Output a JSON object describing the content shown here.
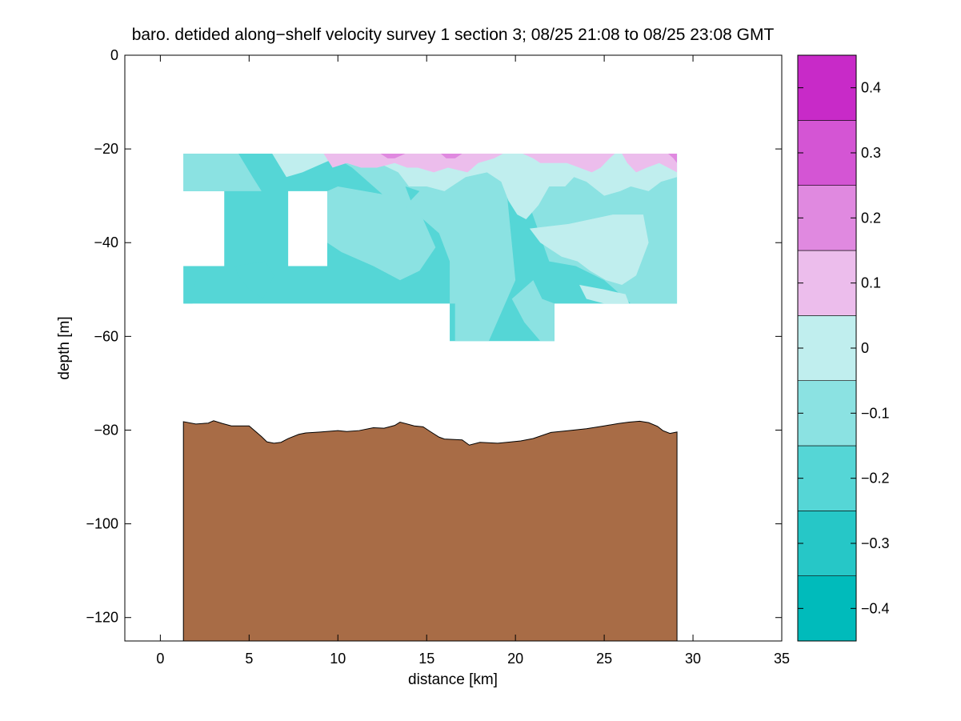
{
  "chart_data": {
    "type": "contour",
    "title": "baro. detided along−shelf velocity survey 1 section 3; 08/25 21:08 to 08/25 23:08 GMT",
    "xlabel": "distance [km]",
    "ylabel": "depth [m]",
    "xlim": [
      -2,
      35
    ],
    "ylim": [
      -125,
      0
    ],
    "xticks": [
      0,
      5,
      10,
      15,
      20,
      25,
      30,
      35
    ],
    "xtick_labels": [
      "0",
      "5",
      "10",
      "15",
      "20",
      "25",
      "30",
      "35"
    ],
    "yticks": [
      0,
      -20,
      -40,
      -60,
      -80,
      -100,
      -120
    ],
    "ytick_labels": [
      "0",
      "−20",
      "−40",
      "−60",
      "−80",
      "−100",
      "−120"
    ],
    "colorbar": {
      "levels": [
        -0.45,
        -0.35,
        -0.25,
        -0.15,
        -0.05,
        0.05,
        0.15,
        0.25,
        0.35,
        0.45
      ],
      "colors": [
        "#00bbbb",
        "#26c7c7",
        "#55d6d6",
        "#8be2e2",
        "#c0eeee",
        "#ecbdec",
        "#e089e0",
        "#d455d4",
        "#c82ac8",
        "#bb00bb"
      ],
      "ticks": [
        -0.4,
        -0.3,
        -0.2,
        -0.1,
        0,
        0.1,
        0.2,
        0.3,
        0.4
      ],
      "tick_labels": [
        "−0.4",
        "−0.3",
        "−0.2",
        "−0.1",
        "0",
        "0.1",
        "0.2",
        "0.3",
        "0.4"
      ]
    },
    "data_region": {
      "main": {
        "x": [
          1.3,
          29.1
        ],
        "depth": [
          -21,
          -53
        ]
      },
      "extension": {
        "x": [
          16.3,
          22.2
        ],
        "depth": [
          -53,
          -61
        ]
      },
      "gaps": [
        {
          "x": [
            1.3,
            3.6
          ],
          "depth": [
            -29,
            -45
          ]
        },
        {
          "x": [
            7.2,
            9.4
          ],
          "depth": [
            -29,
            -45
          ]
        }
      ],
      "background_level": -0.2
    },
    "velocity_regions": [
      {
        "value": -0.15,
        "x": [
          9.5,
          10.3,
          12,
          13,
          14.2,
          14.5,
          17.5,
          19.3,
          20,
          18.5,
          16.6,
          16.6,
          16.3,
          16.3,
          15.7,
          14.8,
          12.6,
          10.8
        ],
        "y": [
          -21,
          -21,
          -21,
          -21,
          -21,
          -21,
          -21,
          -21,
          -48,
          -61,
          -61,
          -53,
          -53,
          -44,
          -38,
          -35,
          -30,
          -24
        ]
      },
      {
        "value": -0.15,
        "x": [
          1.3,
          4.4,
          5.2,
          5.7,
          3.6,
          1.3
        ],
        "y": [
          -21,
          -21,
          -26,
          -29,
          -29,
          -29
        ]
      },
      {
        "value": -0.15,
        "x": [
          9.4,
          10,
          13,
          14.8,
          15.5,
          14.6,
          13.5,
          12,
          10.2,
          9.4
        ],
        "y": [
          -29,
          -28,
          -30,
          -35,
          -41,
          -46,
          -48,
          -45,
          -42,
          -40
        ]
      },
      {
        "value": -0.15,
        "x": [
          18,
          21,
          25,
          29.1,
          29.1,
          26.5,
          25,
          23.4,
          21.9,
          20.6
        ],
        "y": [
          -21,
          -21,
          -21,
          -21,
          -53,
          -53,
          -48,
          -45,
          -44,
          -30
        ]
      },
      {
        "value": -0.15,
        "x": [
          19.8,
          21,
          21.5,
          22.2,
          22.2,
          21.4,
          20.5
        ],
        "y": [
          -52,
          -48,
          -52,
          -53,
          -61,
          -61,
          -57
        ]
      },
      {
        "value": -0.05,
        "x": [
          6.3,
          8,
          9.2,
          10.3,
          12,
          13.5,
          15.5,
          17.3,
          19.8,
          22,
          24,
          26.6,
          28.8,
          29.1,
          29.1,
          28.2,
          27.5,
          26.5,
          25.9,
          25,
          24,
          23.3,
          22.8,
          21.9,
          21.3,
          20.6,
          20.1,
          19.6,
          19.2,
          18.4,
          17.2,
          16,
          15,
          14,
          13.4,
          12.3,
          10.8,
          9.8,
          8,
          7.1
        ],
        "y": [
          -21,
          -21,
          -21,
          -21,
          -21,
          -21,
          -21,
          -21,
          -21,
          -21,
          -21,
          -21,
          -21,
          -21,
          -26,
          -27,
          -29,
          -28,
          -29,
          -30,
          -27,
          -26,
          -28,
          -28,
          -32,
          -35,
          -34,
          -31,
          -27,
          -25,
          -26,
          -29,
          -28,
          -28,
          -25,
          -23,
          -22,
          -22,
          -25,
          -26
        ]
      },
      {
        "value": -0.05,
        "x": [
          20.8,
          23,
          25.5,
          27.2,
          27.5,
          26.8,
          26,
          25.1,
          24.2,
          23.5,
          22.6,
          21.4
        ],
        "y": [
          -37,
          -36,
          -34,
          -34,
          -40,
          -47,
          -49,
          -48,
          -46,
          -44,
          -43,
          -40
        ]
      },
      {
        "value": -0.05,
        "x": [
          23.6,
          25,
          26.2,
          26.4,
          25,
          24
        ],
        "y": [
          -49,
          -50,
          -51,
          -53,
          -53,
          -52
        ]
      },
      {
        "value": 0.05,
        "x": [
          8.7,
          10.1,
          12,
          14,
          15.5,
          16.5,
          17.5,
          18.2,
          19,
          19.1,
          17.2,
          16.5,
          15.5,
          14.2,
          13.4,
          12.6,
          11.9,
          11.2,
          10.4,
          9.6
        ],
        "y": [
          -21,
          -21,
          -21,
          -21,
          -21,
          -21,
          -21,
          -21,
          -21,
          -21,
          -21,
          -21,
          -21,
          -21,
          -21,
          -21,
          -21,
          -21,
          -21,
          -21
        ]
      },
      {
        "value": 0.05,
        "x": [
          9.2,
          19.3,
          18.8,
          17.9,
          17.3,
          16.2,
          15.4,
          14.5,
          13.9,
          13.2,
          12.2,
          11.3,
          10.5,
          9.7
        ],
        "y": [
          -21,
          -21,
          -22,
          -23,
          -25,
          -24,
          -25,
          -24,
          -24,
          -23,
          -24,
          -24,
          -23,
          -24
        ]
      },
      {
        "value": 0.05,
        "x": [
          20.4,
          25.6,
          25.3,
          24.8,
          24.3,
          23.6,
          22.9,
          22.1,
          21.4,
          21
        ],
        "y": [
          -21,
          -21,
          -22,
          -24,
          -25,
          -24,
          -23,
          -23,
          -23,
          -22
        ]
      },
      {
        "value": 0.05,
        "x": [
          26,
          29.1,
          29.1,
          28.6,
          28.1,
          27.4,
          26.8,
          26.3
        ],
        "y": [
          -21,
          -21,
          -25,
          -24,
          -23,
          -24,
          -25,
          -23
        ]
      },
      {
        "value": 0.15,
        "x": [
          12.4,
          12.9,
          13.5,
          13.8,
          13.2,
          12.8
        ],
        "y": [
          -21,
          -21,
          -21,
          -21,
          -22,
          -22
        ]
      },
      {
        "value": 0.15,
        "x": [
          28.6,
          29.1,
          29.1,
          28.9
        ],
        "y": [
          -21,
          -21,
          -23,
          -22
        ]
      },
      {
        "value": 0.15,
        "x": [
          15.8,
          17,
          16.6,
          16.1
        ],
        "y": [
          -21,
          -21,
          -22,
          -22
        ]
      },
      {
        "value": -0.25,
        "x": [
          1.3,
          2.1,
          1.8,
          1.3
        ],
        "y": [
          -44,
          -45,
          -53,
          -53
        ]
      },
      {
        "value": -0.25,
        "x": [
          4.2,
          5.9,
          6.4,
          5.8,
          5,
          4.4
        ],
        "y": [
          -45,
          -44,
          -47,
          -52,
          -50,
          -47
        ]
      },
      {
        "value": -0.25,
        "x": [
          13.8,
          14.6,
          14.1
        ],
        "y": [
          -28,
          -29,
          -31
        ]
      }
    ],
    "seafloor": {
      "color": "#a86c46",
      "x": [
        1.3,
        2,
        2.7,
        3,
        3.5,
        4,
        4.5,
        5,
        5.7,
        6,
        6.4,
        6.8,
        7.2,
        7.8,
        8.2,
        9,
        10,
        10.5,
        11.2,
        12,
        12.6,
        13.2,
        13.5,
        14.3,
        14.8,
        15.2,
        15.7,
        16,
        17,
        17.4,
        18,
        19,
        19.8,
        20.3,
        21,
        22,
        23,
        24,
        25,
        25.8,
        26.4,
        27,
        27.5,
        28,
        28.3,
        28.7,
        29.1
      ],
      "y": [
        -78.2,
        -78.7,
        -78.5,
        -78,
        -78.6,
        -79.1,
        -79.1,
        -79.1,
        -81.4,
        -82.5,
        -82.8,
        -82.6,
        -81.8,
        -80.9,
        -80.6,
        -80.4,
        -80.1,
        -80.3,
        -80.1,
        -79.5,
        -79.6,
        -79,
        -78.3,
        -79.1,
        -79.3,
        -80.3,
        -81.5,
        -81.9,
        -82.1,
        -83.2,
        -82.6,
        -82.8,
        -82.5,
        -82.3,
        -81.8,
        -80.5,
        -80.1,
        -79.7,
        -79.1,
        -78.6,
        -78.3,
        -78.1,
        -78.4,
        -79.2,
        -80.1,
        -80.7,
        -80.4
      ]
    }
  }
}
